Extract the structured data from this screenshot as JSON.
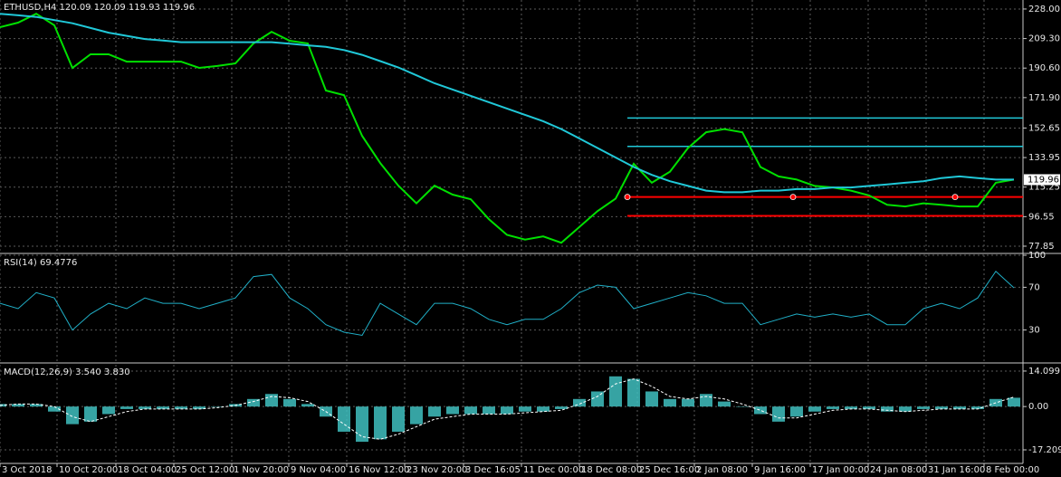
{
  "chart_data": [
    {
      "type": "line",
      "title": "ETHUSD,H4  120.09 120.09 119.93 119.96",
      "x": [
        0,
        2,
        4,
        6,
        8,
        10,
        12,
        14,
        16,
        18,
        20,
        22,
        24,
        26,
        28,
        30,
        32,
        34,
        36,
        38,
        40,
        42,
        44,
        46,
        48,
        50,
        52,
        54,
        56,
        58,
        60,
        62,
        64,
        66,
        68,
        70,
        72,
        74,
        76,
        78,
        80,
        82,
        84,
        86,
        88,
        90,
        92,
        94,
        96,
        98,
        100,
        102,
        104,
        106,
        108,
        110,
        112
      ],
      "series": [
        {
          "color": "#00e000",
          "values": [
            216.5,
            219.4,
            225,
            217.7,
            190.7,
            199.3,
            199.3,
            194.7,
            194.7,
            194.7,
            194.7,
            190.7,
            191.9,
            193.6,
            206.2,
            213.6,
            207.9,
            206.2,
            176.4,
            173.5,
            147.7,
            130.5,
            116.2,
            105,
            116.2,
            110.5,
            107.6,
            95,
            85,
            82,
            84,
            80,
            90,
            100,
            108,
            130,
            118,
            125,
            140,
            150,
            152,
            150,
            128,
            122,
            120,
            116,
            115,
            113,
            110,
            104,
            103,
            105,
            104,
            103,
            103,
            118,
            120
          ]
        },
        {
          "color": "#20c8d8",
          "values": [
            225,
            224,
            223,
            221,
            219,
            216,
            213,
            211,
            209,
            208,
            207,
            207,
            207,
            207,
            207,
            207,
            206,
            205,
            204,
            202,
            199,
            195,
            191,
            186,
            181,
            177,
            173,
            169,
            165,
            161,
            157,
            152,
            146,
            140,
            134,
            128,
            123,
            119,
            116,
            113,
            112,
            112,
            113,
            113,
            114,
            114,
            115,
            115,
            116,
            117,
            118,
            119,
            121,
            122,
            121,
            120,
            120
          ]
        }
      ],
      "lines": [
        {
          "value": 159,
          "x0": 69.3,
          "color": "#20c8d8"
        },
        {
          "value": 141,
          "x0": 69.3,
          "color": "#20c8d8"
        },
        {
          "value": 109,
          "x0": 69.3,
          "color": "#ff0000"
        },
        {
          "value": 97,
          "x0": 69.3,
          "color": "#ff0000"
        }
      ],
      "last_price": 119.96,
      "xlim": [
        0,
        113
      ],
      "ylim": [
        74.4,
        233.7
      ],
      "yticks": [
        {
          "value": 228,
          "label": "228.00"
        },
        {
          "value": 209.3,
          "label": "209.30"
        },
        {
          "value": 190.6,
          "label": "190.60"
        },
        {
          "value": 171.9,
          "label": "171.90"
        },
        152.65,
        133.95,
        115.25,
        96.55,
        77.85
      ],
      "grid": true
    },
    {
      "type": "line",
      "title": "RSI(14) 69.4776",
      "x": [
        0,
        2,
        4,
        6,
        8,
        10,
        12,
        14,
        16,
        18,
        20,
        22,
        24,
        26,
        28,
        30,
        32,
        34,
        36,
        38,
        40,
        42,
        44,
        46,
        48,
        50,
        52,
        54,
        56,
        58,
        60,
        62,
        64,
        66,
        68,
        70,
        72,
        74,
        76,
        78,
        80,
        82,
        84,
        86,
        88,
        90,
        92,
        94,
        96,
        98,
        100,
        102,
        104,
        106,
        108,
        110,
        112
      ],
      "series": [
        {
          "color": "#20b0c8",
          "values": [
            55,
            50,
            65,
            60,
            30,
            45,
            55,
            50,
            60,
            55,
            55,
            50,
            55,
            60,
            80,
            82,
            60,
            50,
            35,
            28,
            25,
            55,
            45,
            35,
            55,
            55,
            50,
            40,
            35,
            40,
            40,
            50,
            65,
            72,
            70,
            50,
            55,
            60,
            65,
            62,
            55,
            55,
            35,
            40,
            45,
            42,
            45,
            42,
            45,
            35,
            35,
            50,
            55,
            50,
            60,
            85,
            69.5
          ]
        }
      ],
      "xlim": [
        0,
        113
      ],
      "ylim": [
        0,
        100
      ],
      "yticks": [
        100,
        70,
        30
      ],
      "grid": true
    },
    {
      "type": "bar",
      "title": "MACD(12,26,9) 3.540 3.830",
      "x": [
        0,
        2,
        4,
        6,
        8,
        10,
        12,
        14,
        16,
        18,
        20,
        22,
        24,
        26,
        28,
        30,
        32,
        34,
        36,
        38,
        40,
        42,
        44,
        46,
        48,
        50,
        52,
        54,
        56,
        58,
        60,
        62,
        64,
        66,
        68,
        70,
        72,
        74,
        76,
        78,
        80,
        82,
        84,
        86,
        88,
        90,
        92,
        94,
        96,
        98,
        100,
        102,
        104,
        106,
        108,
        110,
        112
      ],
      "series": [
        {
          "type": "bar",
          "color": "#40c0c0",
          "values": [
            1,
            1,
            1,
            -2,
            -7,
            -6,
            -3,
            -1,
            -1,
            -1,
            -1,
            -1,
            0,
            1,
            3,
            5,
            3,
            1,
            -4,
            -10,
            -14,
            -13,
            -10,
            -7,
            -4,
            -3,
            -3,
            -3,
            -3,
            -2,
            -2,
            -1,
            3,
            6,
            12,
            11,
            6,
            3,
            3,
            5,
            2,
            0,
            -3,
            -6,
            -4,
            -2,
            -1,
            -1,
            -1,
            -2,
            -2,
            -1,
            -1,
            -1,
            -1,
            3,
            3.5
          ]
        },
        {
          "type": "line",
          "color": "#ffffff",
          "values": [
            0.5,
            1,
            1,
            0,
            -4,
            -6,
            -4,
            -2,
            -1,
            -1,
            -1,
            -1,
            -0.5,
            0.5,
            2,
            4,
            3.5,
            2,
            -2,
            -7,
            -12,
            -13,
            -11,
            -8,
            -5,
            -4,
            -3,
            -3,
            -3,
            -2.5,
            -2,
            -1.5,
            1,
            4,
            9,
            11,
            8,
            4,
            3,
            4,
            3,
            1,
            -1.5,
            -4.5,
            -4.5,
            -3,
            -1.5,
            -1,
            -1,
            -1.5,
            -2,
            -1.5,
            -1,
            -1,
            -1,
            1.5,
            3.8
          ]
        }
      ],
      "xlim": [
        0,
        113
      ],
      "ylim": [
        -22.6,
        16.6
      ],
      "yticks": [
        14.099,
        {
          "value": 0,
          "label": "0.00"
        },
        -17.209
      ],
      "xticks": [
        {
          "value": 0,
          "label": "3 Oct 2018"
        },
        {
          "value": 6.3,
          "label": "10 Oct 20:00"
        },
        {
          "value": 12.8,
          "label": "18 Oct 04:00"
        },
        {
          "value": 19.2,
          "label": "25 Oct 12:00"
        },
        {
          "value": 25.6,
          "label": "1 Nov 20:00"
        },
        {
          "value": 31.9,
          "label": "9 Nov 04:00"
        },
        {
          "value": 38.3,
          "label": "16 Nov 12:00"
        },
        {
          "value": 44.7,
          "label": "23 Nov 20:00"
        },
        {
          "value": 51.2,
          "label": "3 Dec 16:05"
        },
        {
          "value": 57.6,
          "label": "11 Dec 00:00"
        },
        {
          "value": 64,
          "label": "18 Dec 08:00"
        },
        {
          "value": 70.4,
          "label": "25 Dec 16:00"
        },
        {
          "value": 76.7,
          "label": "2 Jan 08:00"
        },
        {
          "value": 83.1,
          "label": "9 Jan 16:00"
        },
        {
          "value": 89.5,
          "label": "17 Jan 00:00"
        },
        {
          "value": 95.9,
          "label": "24 Jan 08:00"
        },
        {
          "value": 102.3,
          "label": "31 Jan 16:00"
        },
        {
          "value": 108.7,
          "label": "8 Feb 00:00"
        }
      ],
      "grid": true
    }
  ]
}
